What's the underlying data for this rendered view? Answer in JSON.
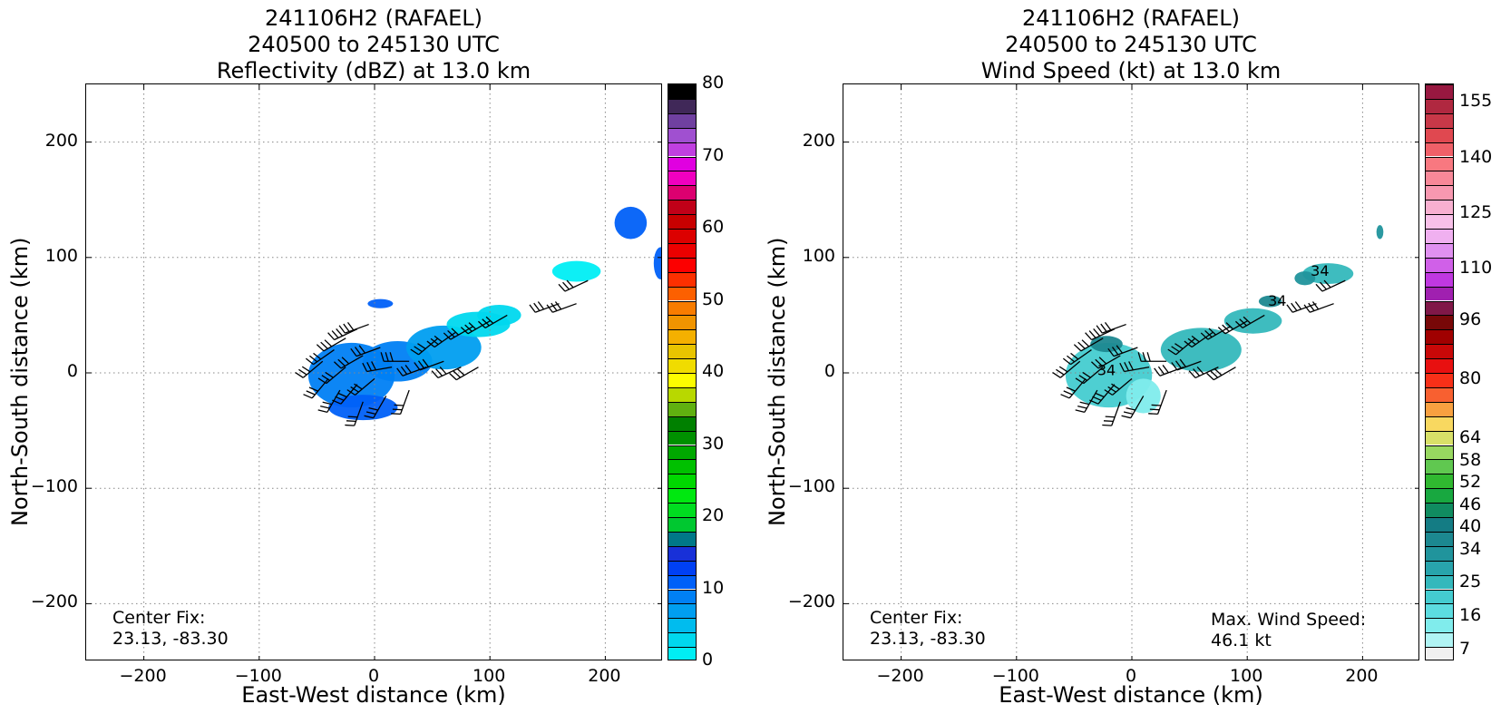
{
  "chart_data": [
    {
      "type": "heatmap",
      "title_lines": [
        "241106H2 (RAFAEL)",
        "240500 to 245130 UTC",
        "Reflectivity (dBZ) at 13.0 km"
      ],
      "xlabel": "East-West distance (km)",
      "ylabel": "North-South distance (km)",
      "xlim": [
        -250,
        250
      ],
      "ylim": [
        -250,
        250
      ],
      "xticks": [
        -200,
        -100,
        0,
        100,
        200
      ],
      "yticks": [
        -200,
        -100,
        0,
        100,
        200
      ],
      "xtick_labels": [
        "−200",
        "−100",
        "0",
        "100",
        "200"
      ],
      "ytick_labels": [
        "−200",
        "−100",
        "0",
        "100",
        "200"
      ],
      "grid": true,
      "colorbar": {
        "range": [
          0,
          80
        ],
        "ticks": [
          0,
          10,
          20,
          30,
          40,
          50,
          60,
          70,
          80
        ],
        "tick_labels": [
          "0",
          "10",
          "20",
          "30",
          "40",
          "50",
          "60",
          "70",
          "80"
        ],
        "colors": [
          "#00eef4",
          "#00d8ee",
          "#00bcee",
          "#009ef0",
          "#0080f4",
          "#0060f8",
          "#0040f4",
          "#1830d8",
          "#007888",
          "#00c830",
          "#00dd20",
          "#00e810",
          "#00d800",
          "#00c000",
          "#00a800",
          "#009000",
          "#008000",
          "#60b010",
          "#b8d800",
          "#fcfc00",
          "#f0dc00",
          "#e8c400",
          "#f4b000",
          "#f09400",
          "#f87c00",
          "#fc6000",
          "#fc3000",
          "#fc0000",
          "#ec0000",
          "#dc0000",
          "#c80000",
          "#c00018",
          "#dc0070",
          "#f000c0",
          "#e000e0",
          "#c040e0",
          "#a050d0",
          "#7040a0",
          "#402858",
          "#000000"
        ]
      },
      "precip_cells": [
        {
          "x": -20,
          "y": -2,
          "w": 75,
          "h": 56,
          "value": 8
        },
        {
          "x": 20,
          "y": 10,
          "w": 60,
          "h": 35,
          "value": 9
        },
        {
          "x": 60,
          "y": 22,
          "w": 65,
          "h": 38,
          "value": 6
        },
        {
          "x": 90,
          "y": 42,
          "w": 55,
          "h": 22,
          "value": 3
        },
        {
          "x": 108,
          "y": 50,
          "w": 38,
          "h": 18,
          "value": 2
        },
        {
          "x": 175,
          "y": 88,
          "w": 42,
          "h": 18,
          "value": 1
        },
        {
          "x": 222,
          "y": 130,
          "w": 28,
          "h": 28,
          "value": 10
        },
        {
          "x": 248,
          "y": 95,
          "w": 12,
          "h": 28,
          "value": 10
        },
        {
          "x": 5,
          "y": 60,
          "w": 22,
          "h": 8,
          "value": 11
        },
        {
          "x": -10,
          "y": -30,
          "w": 60,
          "h": 22,
          "value": 11
        }
      ],
      "center_fix_label": "Center Fix:",
      "center_fix": "23.13, -83.30"
    },
    {
      "type": "heatmap",
      "title_lines": [
        "241106H2 (RAFAEL)",
        "240500 to 245130 UTC",
        "Wind Speed (kt) at 13.0 km"
      ],
      "xlabel": "East-West distance (km)",
      "ylabel": "North-South distance (km)",
      "xlim": [
        -250,
        250
      ],
      "ylim": [
        -250,
        250
      ],
      "xticks": [
        -200,
        -100,
        0,
        100,
        200
      ],
      "yticks": [
        -200,
        -100,
        0,
        100,
        200
      ],
      "xtick_labels": [
        "−200",
        "−100",
        "0",
        "100",
        "200"
      ],
      "ytick_labels": [
        "−200",
        "−100",
        "0",
        "100",
        "200"
      ],
      "grid": true,
      "colorbar": {
        "range": [
          4,
          160
        ],
        "ticks": [
          7,
          16,
          25,
          34,
          40,
          46,
          52,
          58,
          64,
          80,
          96,
          110,
          125,
          140,
          155
        ],
        "tick_labels": [
          "7",
          "16",
          "25",
          "34",
          "40",
          "46",
          "52",
          "58",
          "64",
          "80",
          "96",
          "110",
          "125",
          "140",
          "155"
        ],
        "colors": [
          "#f0f0f0",
          "#b0f4f4",
          "#80ecec",
          "#5cdce0",
          "#44ccd0",
          "#34b8bc",
          "#28a4ac",
          "#20949c",
          "#1c8890",
          "#147c84",
          "#108c60",
          "#18a840",
          "#30b830",
          "#60c850",
          "#98d860",
          "#d8e068",
          "#f8d860",
          "#f8a040",
          "#f86030",
          "#f83018",
          "#e81010",
          "#c80808",
          "#a00000",
          "#780808",
          "#801848",
          "#a020b0",
          "#c038e0",
          "#d060e8",
          "#e090f0",
          "#f0b0f0",
          "#f8c0e8",
          "#f8b0d0",
          "#f898b0",
          "#f88898",
          "#f87880",
          "#f06068",
          "#e04850",
          "#c83848",
          "#b02840",
          "#981840"
        ]
      },
      "contour_labels": [
        "34",
        "34",
        "34"
      ],
      "wind_cells": [
        {
          "x": -20,
          "y": -2,
          "w": 75,
          "h": 56,
          "value": 22
        },
        {
          "x": 10,
          "y": -20,
          "w": 30,
          "h": 30,
          "value": 12
        },
        {
          "x": 60,
          "y": 20,
          "w": 70,
          "h": 38,
          "value": 24
        },
        {
          "x": 105,
          "y": 45,
          "w": 50,
          "h": 22,
          "value": 26
        },
        {
          "x": 170,
          "y": 86,
          "w": 44,
          "h": 18,
          "value": 26
        },
        {
          "x": -22,
          "y": 25,
          "w": 28,
          "h": 14,
          "value": 36
        },
        {
          "x": 120,
          "y": 62,
          "w": 20,
          "h": 10,
          "value": 36
        },
        {
          "x": 150,
          "y": 82,
          "w": 18,
          "h": 12,
          "value": 34
        },
        {
          "x": 215,
          "y": 122,
          "w": 6,
          "h": 12,
          "value": 34
        }
      ],
      "center_fix_label": "Center Fix:",
      "center_fix": "23.13, -83.30",
      "max_wind_label": "Max. Wind Speed:",
      "max_wind": "46.1 kt"
    }
  ],
  "wind_barbs": [
    {
      "x": -45,
      "y": 10,
      "dir": 230
    },
    {
      "x": -35,
      "y": 20,
      "dir": 235
    },
    {
      "x": -25,
      "y": 30,
      "dir": 240
    },
    {
      "x": -15,
      "y": 38,
      "dir": 245
    },
    {
      "x": -5,
      "y": 42,
      "dir": 250
    },
    {
      "x": -40,
      "y": -5,
      "dir": 220
    },
    {
      "x": -25,
      "y": 5,
      "dir": 230
    },
    {
      "x": -10,
      "y": 15,
      "dir": 240
    },
    {
      "x": 5,
      "y": 22,
      "dir": 250
    },
    {
      "x": -30,
      "y": -15,
      "dir": 210
    },
    {
      "x": -15,
      "y": -10,
      "dir": 220
    },
    {
      "x": 0,
      "y": -5,
      "dir": 230
    },
    {
      "x": 15,
      "y": 5,
      "dir": 260
    },
    {
      "x": 30,
      "y": 10,
      "dir": 270
    },
    {
      "x": -10,
      "y": -25,
      "dir": 200
    },
    {
      "x": 10,
      "y": -20,
      "dir": 210
    },
    {
      "x": 30,
      "y": -15,
      "dir": 200
    },
    {
      "x": 45,
      "y": 5,
      "dir": 250
    },
    {
      "x": 60,
      "y": 10,
      "dir": 250
    },
    {
      "x": 75,
      "y": 5,
      "dir": 245
    },
    {
      "x": 90,
      "y": 5,
      "dir": 240
    },
    {
      "x": 55,
      "y": 30,
      "dir": 230
    },
    {
      "x": 70,
      "y": 35,
      "dir": 235
    },
    {
      "x": 85,
      "y": 40,
      "dir": 240
    },
    {
      "x": 100,
      "y": 45,
      "dir": 240
    },
    {
      "x": 115,
      "y": 50,
      "dir": 240
    },
    {
      "x": 160,
      "y": 60,
      "dir": 250
    },
    {
      "x": 175,
      "y": 60,
      "dir": 250
    },
    {
      "x": 185,
      "y": 80,
      "dir": 245
    }
  ],
  "barb_color": "#000000",
  "grid_color": "#888888"
}
